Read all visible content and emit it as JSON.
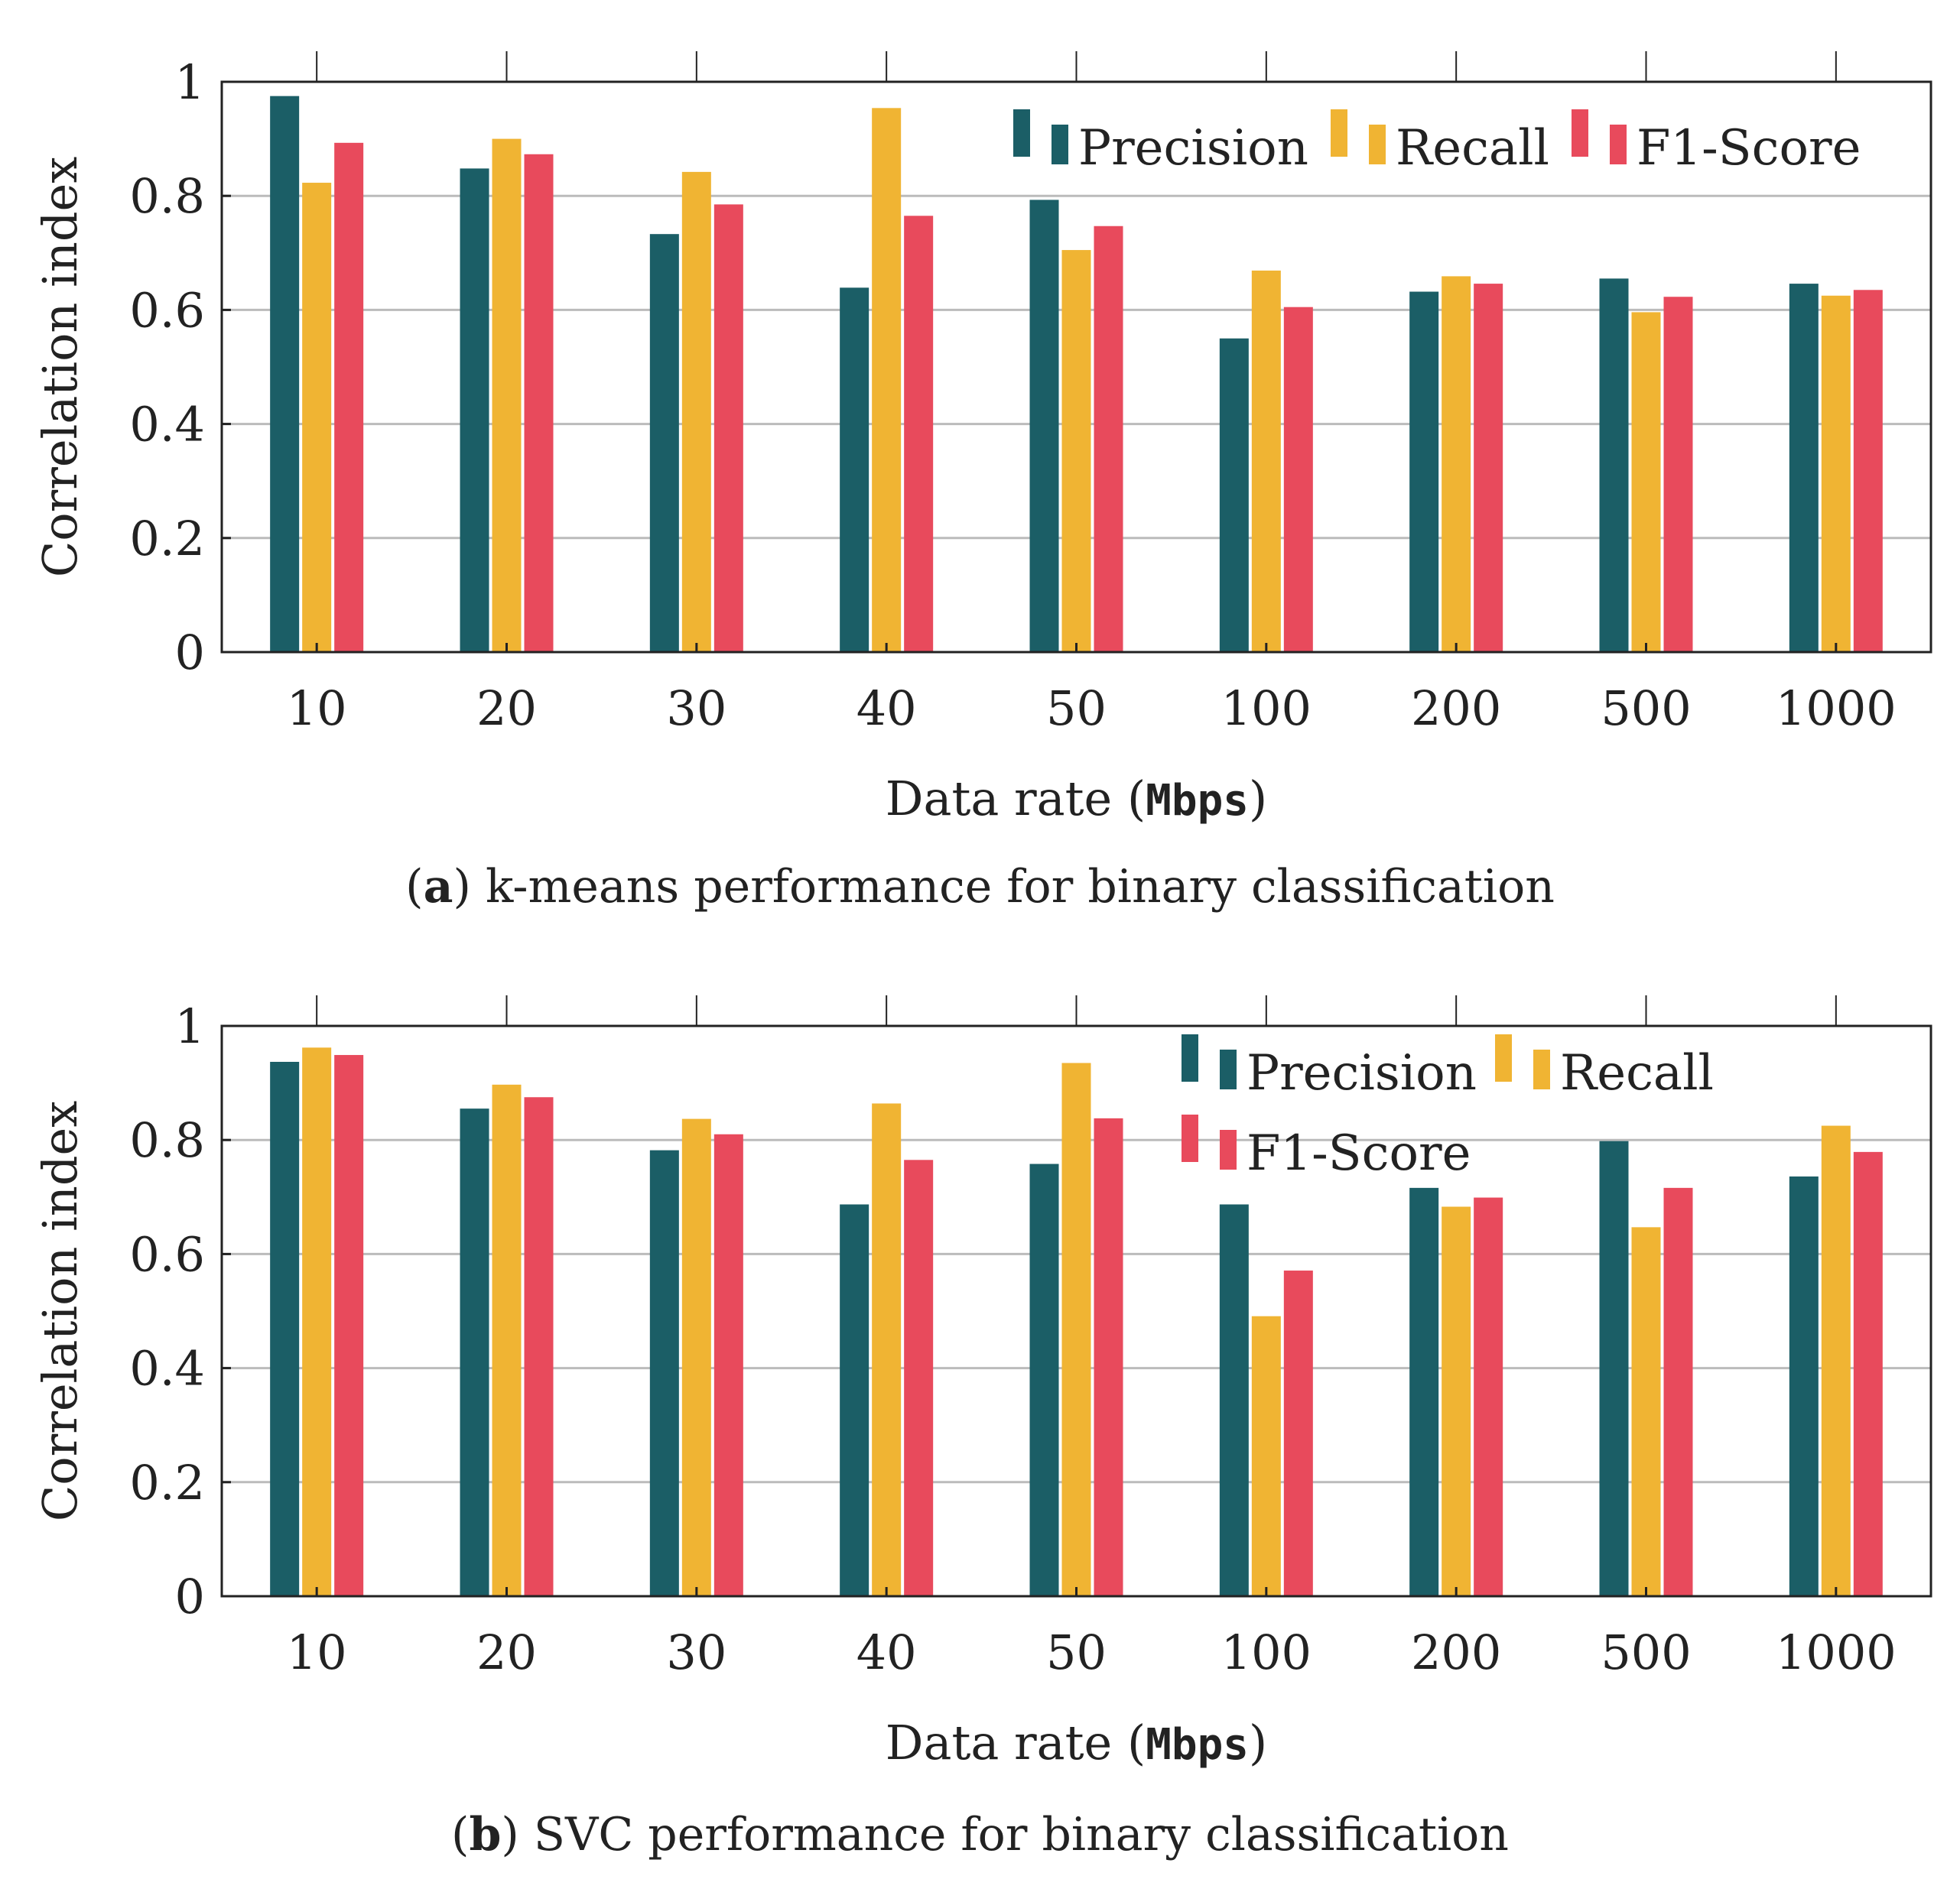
{
  "colors": {
    "precision": "#1b5e66",
    "recall": "#f0b433",
    "f1": "#e84a5c",
    "grid": "#bbbbbb",
    "axis": "#222222"
  },
  "chart_data": [
    {
      "type": "bar",
      "title": "k-means performance for binary classification",
      "caption_label": "a",
      "xlabel_text": "Data rate (",
      "xlabel_unit": "Mbps",
      "xlabel_close": ")",
      "ylabel": "Correlation index",
      "ylim": [
        0,
        1
      ],
      "yticks": [
        "0",
        "0.2",
        "0.4",
        "0.6",
        "0.8",
        "1"
      ],
      "ytick_values": [
        0,
        0.2,
        0.4,
        0.6,
        0.8,
        1
      ],
      "categories": [
        "10",
        "20",
        "30",
        "40",
        "50",
        "100",
        "200",
        "500",
        "1000"
      ],
      "legend_position": "top-right",
      "legend_layout": "single-row",
      "series": [
        {
          "name": "Precision",
          "values": [
            0.975,
            0.848,
            0.733,
            0.639,
            0.793,
            0.55,
            0.632,
            0.655,
            0.646
          ]
        },
        {
          "name": "Recall",
          "values": [
            0.823,
            0.9,
            0.842,
            0.954,
            0.705,
            0.669,
            0.659,
            0.596,
            0.625
          ]
        },
        {
          "name": "F1-Score",
          "values": [
            0.893,
            0.873,
            0.785,
            0.765,
            0.747,
            0.605,
            0.646,
            0.623,
            0.635
          ]
        }
      ]
    },
    {
      "type": "bar",
      "title": "SVC performance for binary classification",
      "caption_label": "b",
      "xlabel_text": "Data rate (",
      "xlabel_unit": "Mbps",
      "xlabel_close": ")",
      "ylabel": "Correlation index",
      "ylim": [
        0,
        1
      ],
      "yticks": [
        "0",
        "0.2",
        "0.4",
        "0.6",
        "0.8",
        "1"
      ],
      "ytick_values": [
        0,
        0.2,
        0.4,
        0.6,
        0.8,
        1
      ],
      "categories": [
        "10",
        "20",
        "30",
        "40",
        "50",
        "100",
        "200",
        "500",
        "1000"
      ],
      "legend_position": "top-right",
      "legend_layout": "two-rows",
      "series": [
        {
          "name": "Precision",
          "values": [
            0.937,
            0.855,
            0.782,
            0.687,
            0.758,
            0.687,
            0.716,
            0.798,
            0.736
          ]
        },
        {
          "name": "Recall",
          "values": [
            0.962,
            0.897,
            0.837,
            0.864,
            0.935,
            0.491,
            0.683,
            0.647,
            0.825
          ]
        },
        {
          "name": "F1-Score",
          "values": [
            0.949,
            0.875,
            0.81,
            0.765,
            0.838,
            0.571,
            0.699,
            0.716,
            0.779
          ]
        }
      ]
    }
  ]
}
